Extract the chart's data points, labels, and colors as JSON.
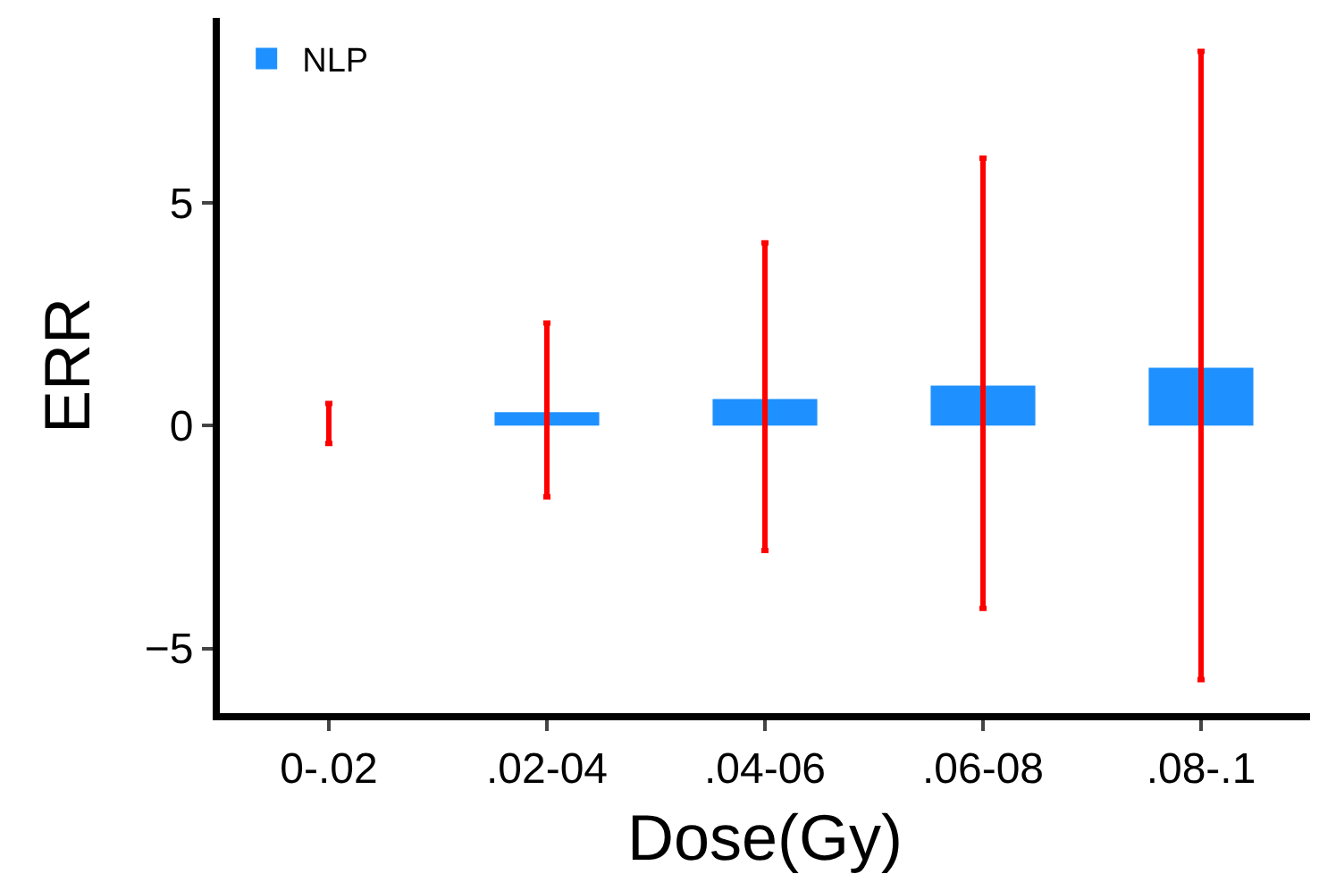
{
  "chart_data": {
    "type": "bar",
    "xlabel": "Dose(Gy)",
    "ylabel": "ERR",
    "categories": [
      "0-.02",
      ".02-04",
      ".04-06",
      ".06-08",
      ".08-.1"
    ],
    "series": [
      {
        "name": "NLP",
        "color": "#1e90ff",
        "values": [
          0,
          0.3,
          0.6,
          0.9,
          1.3
        ],
        "errors": [
          [
            -0.4,
            0.5
          ],
          [
            -1.6,
            2.3
          ],
          [
            -2.8,
            4.1
          ],
          [
            -4.1,
            6.0
          ],
          [
            -5.7,
            8.4
          ]
        ]
      }
    ],
    "ylim": [
      -6.45,
      9.15
    ],
    "yticks": [
      -5,
      0,
      5
    ],
    "legend": "top left"
  }
}
